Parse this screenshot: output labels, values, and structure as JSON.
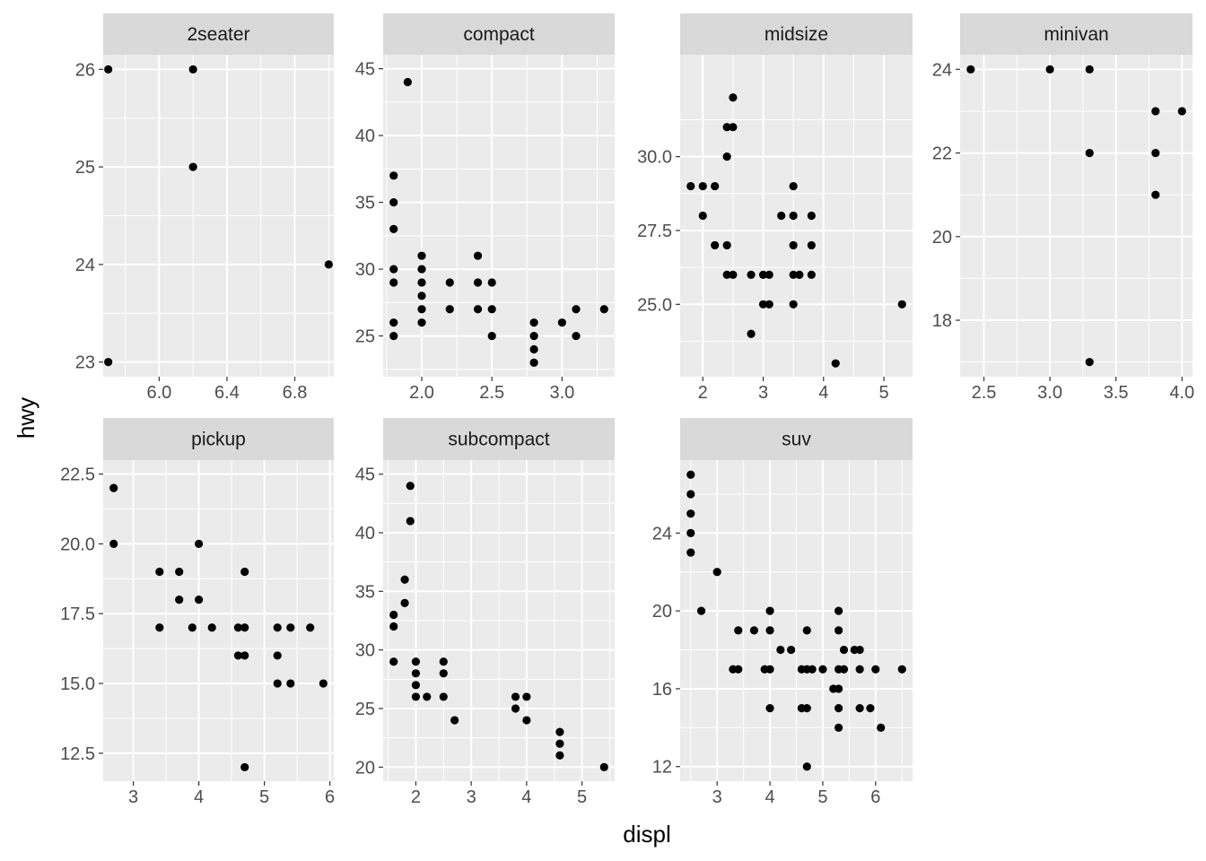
{
  "chart_data": {
    "type": "scatter",
    "xlabel": "displ",
    "ylabel": "hwy",
    "grid": true,
    "point_color": "#000000",
    "panel_background": "#ebebeb",
    "strip_background": "#d9d9d9",
    "panels": [
      {
        "name": "2seater",
        "xlim": [
          5.67,
          7.03
        ],
        "ylim": [
          22.85,
          26.15
        ],
        "x_ticks": [
          6.0,
          6.4,
          6.8
        ],
        "x_tick_labels": [
          "6.0",
          "6.4",
          "6.8"
        ],
        "y_ticks": [
          23,
          24,
          25,
          26
        ],
        "y_tick_labels": [
          "23",
          "24",
          "25",
          "26"
        ],
        "points": [
          [
            5.7,
            26
          ],
          [
            5.7,
            23
          ],
          [
            6.2,
            26
          ],
          [
            6.2,
            25
          ],
          [
            7.0,
            24
          ]
        ]
      },
      {
        "name": "compact",
        "xlim": [
          1.725,
          3.375
        ],
        "ylim": [
          21.95,
          46.05
        ],
        "x_ticks": [
          2.0,
          2.5,
          3.0
        ],
        "x_tick_labels": [
          "2.0",
          "2.5",
          "3.0"
        ],
        "y_ticks": [
          25,
          30,
          35,
          40,
          45
        ],
        "y_tick_labels": [
          "25",
          "30",
          "35",
          "40",
          "45"
        ],
        "points": [
          [
            1.8,
            37
          ],
          [
            1.8,
            35
          ],
          [
            1.8,
            33
          ],
          [
            1.8,
            30
          ],
          [
            1.8,
            29
          ],
          [
            1.8,
            26
          ],
          [
            1.8,
            25
          ],
          [
            1.9,
            44
          ],
          [
            2.0,
            31
          ],
          [
            2.0,
            30
          ],
          [
            2.0,
            29
          ],
          [
            2.0,
            28
          ],
          [
            2.0,
            27
          ],
          [
            2.0,
            26
          ],
          [
            2.2,
            29
          ],
          [
            2.2,
            27
          ],
          [
            2.4,
            31
          ],
          [
            2.4,
            29
          ],
          [
            2.4,
            27
          ],
          [
            2.5,
            29
          ],
          [
            2.5,
            27
          ],
          [
            2.5,
            25
          ],
          [
            2.8,
            26
          ],
          [
            2.8,
            25
          ],
          [
            2.8,
            24
          ],
          [
            2.8,
            23
          ],
          [
            3.0,
            26
          ],
          [
            3.1,
            27
          ],
          [
            3.1,
            25
          ],
          [
            3.3,
            27
          ]
        ]
      },
      {
        "name": "midsize",
        "xlim": [
          1.625,
          5.475
        ],
        "ylim": [
          22.55,
          33.45
        ],
        "x_ticks": [
          2,
          3,
          4,
          5
        ],
        "x_tick_labels": [
          "2",
          "3",
          "4",
          "5"
        ],
        "y_ticks": [
          25.0,
          27.5,
          30.0
        ],
        "y_tick_labels": [
          "25.0",
          "27.5",
          "30.0"
        ],
        "points": [
          [
            1.8,
            29
          ],
          [
            2.0,
            29
          ],
          [
            2.0,
            28
          ],
          [
            2.2,
            29
          ],
          [
            2.2,
            27
          ],
          [
            2.4,
            31
          ],
          [
            2.4,
            30
          ],
          [
            2.4,
            27
          ],
          [
            2.4,
            26
          ],
          [
            2.5,
            32
          ],
          [
            2.5,
            31
          ],
          [
            2.5,
            26
          ],
          [
            2.8,
            26
          ],
          [
            2.8,
            24
          ],
          [
            3.0,
            26
          ],
          [
            3.0,
            25
          ],
          [
            3.1,
            26
          ],
          [
            3.1,
            25
          ],
          [
            3.3,
            28
          ],
          [
            3.5,
            29
          ],
          [
            3.5,
            28
          ],
          [
            3.5,
            27
          ],
          [
            3.5,
            26
          ],
          [
            3.5,
            25
          ],
          [
            3.6,
            26
          ],
          [
            3.8,
            28
          ],
          [
            3.8,
            27
          ],
          [
            3.8,
            26
          ],
          [
            4.2,
            23
          ],
          [
            5.3,
            25
          ]
        ]
      },
      {
        "name": "minivan",
        "xlim": [
          2.32,
          4.08
        ],
        "ylim": [
          16.65,
          24.35
        ],
        "x_ticks": [
          2.5,
          3.0,
          3.5,
          4.0
        ],
        "x_tick_labels": [
          "2.5",
          "3.0",
          "3.5",
          "4.0"
        ],
        "y_ticks": [
          18,
          20,
          22,
          24
        ],
        "y_tick_labels": [
          "18",
          "20",
          "22",
          "24"
        ],
        "points": [
          [
            2.4,
            24
          ],
          [
            3.0,
            24
          ],
          [
            3.3,
            24
          ],
          [
            3.3,
            22
          ],
          [
            3.3,
            17
          ],
          [
            3.8,
            23
          ],
          [
            3.8,
            22
          ],
          [
            3.8,
            21
          ],
          [
            4.0,
            23
          ]
        ]
      },
      {
        "name": "pickup",
        "xlim": [
          2.54,
          6.06
        ],
        "ylim": [
          11.5,
          23.0
        ],
        "x_ticks": [
          3,
          4,
          5,
          6
        ],
        "x_tick_labels": [
          "3",
          "4",
          "5",
          "6"
        ],
        "y_ticks": [
          12.5,
          15.0,
          17.5,
          20.0,
          22.5
        ],
        "y_tick_labels": [
          "12.5",
          "15.0",
          "17.5",
          "20.0",
          "22.5"
        ],
        "points": [
          [
            2.7,
            22
          ],
          [
            2.7,
            20
          ],
          [
            3.4,
            19
          ],
          [
            3.4,
            17
          ],
          [
            3.7,
            19
          ],
          [
            3.7,
            18
          ],
          [
            3.9,
            17
          ],
          [
            4.0,
            20
          ],
          [
            4.0,
            18
          ],
          [
            4.2,
            17
          ],
          [
            4.6,
            17
          ],
          [
            4.6,
            16
          ],
          [
            4.7,
            19
          ],
          [
            4.7,
            17
          ],
          [
            4.7,
            16
          ],
          [
            4.7,
            12
          ],
          [
            5.2,
            17
          ],
          [
            5.2,
            16
          ],
          [
            5.2,
            15
          ],
          [
            5.4,
            17
          ],
          [
            5.4,
            15
          ],
          [
            5.7,
            17
          ],
          [
            5.9,
            15
          ]
        ]
      },
      {
        "name": "subcompact",
        "xlim": [
          1.41,
          5.59
        ],
        "ylim": [
          18.8,
          46.2
        ],
        "x_ticks": [
          2,
          3,
          4,
          5
        ],
        "x_tick_labels": [
          "2",
          "3",
          "4",
          "5"
        ],
        "y_ticks": [
          20,
          25,
          30,
          35,
          40,
          45
        ],
        "y_tick_labels": [
          "20",
          "25",
          "30",
          "35",
          "40",
          "45"
        ],
        "points": [
          [
            1.6,
            33
          ],
          [
            1.6,
            32
          ],
          [
            1.6,
            29
          ],
          [
            1.8,
            36
          ],
          [
            1.8,
            34
          ],
          [
            1.9,
            44
          ],
          [
            1.9,
            41
          ],
          [
            2.0,
            29
          ],
          [
            2.0,
            28
          ],
          [
            2.0,
            27
          ],
          [
            2.0,
            26
          ],
          [
            2.2,
            26
          ],
          [
            2.5,
            29
          ],
          [
            2.5,
            28
          ],
          [
            2.5,
            26
          ],
          [
            2.7,
            24
          ],
          [
            3.8,
            26
          ],
          [
            3.8,
            25
          ],
          [
            4.0,
            26
          ],
          [
            4.0,
            24
          ],
          [
            4.6,
            23
          ],
          [
            4.6,
            22
          ],
          [
            4.6,
            21
          ],
          [
            5.4,
            20
          ]
        ]
      },
      {
        "name": "suv",
        "xlim": [
          2.3,
          6.7
        ],
        "ylim": [
          11.25,
          27.75
        ],
        "x_ticks": [
          3,
          4,
          5,
          6
        ],
        "x_tick_labels": [
          "3",
          "4",
          "5",
          "6"
        ],
        "y_ticks": [
          12,
          16,
          20,
          24
        ],
        "y_tick_labels": [
          "12",
          "16",
          "20",
          "24"
        ],
        "points": [
          [
            2.5,
            27
          ],
          [
            2.5,
            26
          ],
          [
            2.5,
            25
          ],
          [
            2.5,
            24
          ],
          [
            2.5,
            23
          ],
          [
            2.7,
            20
          ],
          [
            3.0,
            22
          ],
          [
            3.3,
            17
          ],
          [
            3.4,
            19
          ],
          [
            3.4,
            17
          ],
          [
            3.7,
            19
          ],
          [
            3.9,
            17
          ],
          [
            4.0,
            20
          ],
          [
            4.0,
            19
          ],
          [
            4.0,
            17
          ],
          [
            4.0,
            15
          ],
          [
            4.2,
            18
          ],
          [
            4.4,
            18
          ],
          [
            4.6,
            17
          ],
          [
            4.6,
            15
          ],
          [
            4.7,
            19
          ],
          [
            4.7,
            17
          ],
          [
            4.7,
            15
          ],
          [
            4.7,
            12
          ],
          [
            4.8,
            17
          ],
          [
            5.0,
            17
          ],
          [
            5.2,
            16
          ],
          [
            5.3,
            20
          ],
          [
            5.3,
            19
          ],
          [
            5.3,
            17
          ],
          [
            5.3,
            16
          ],
          [
            5.3,
            15
          ],
          [
            5.3,
            14
          ],
          [
            5.4,
            18
          ],
          [
            5.4,
            17
          ],
          [
            5.6,
            18
          ],
          [
            5.7,
            18
          ],
          [
            5.7,
            17
          ],
          [
            5.7,
            15
          ],
          [
            5.9,
            15
          ],
          [
            6.0,
            17
          ],
          [
            6.1,
            14
          ],
          [
            6.5,
            17
          ]
        ]
      }
    ]
  }
}
